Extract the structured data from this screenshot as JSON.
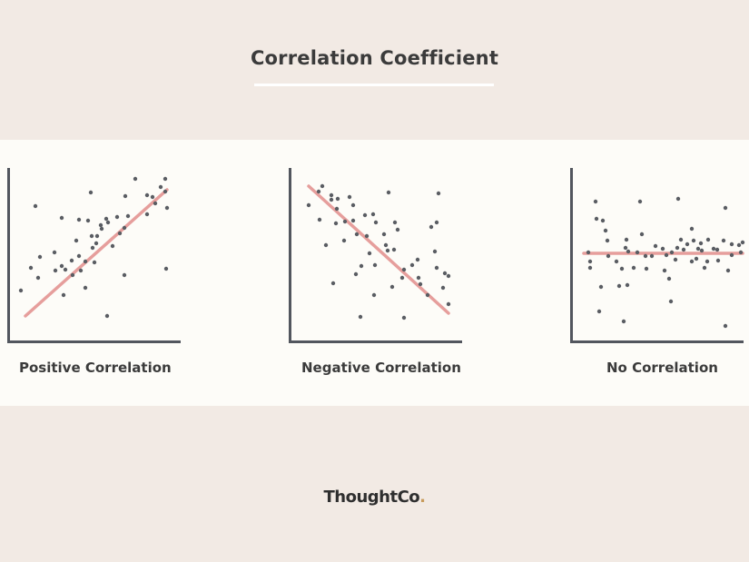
{
  "title": "Correlation Coefficient",
  "panels": [
    {
      "label": "Positive Correlation",
      "trend": "positive",
      "points": [
        [
          15,
          135
        ],
        [
          31,
          42
        ],
        [
          26,
          110
        ],
        [
          34,
          121
        ],
        [
          53,
          113
        ],
        [
          36,
          98
        ],
        [
          52,
          93
        ],
        [
          60,
          108
        ],
        [
          62,
          140
        ],
        [
          60,
          55
        ],
        [
          64,
          112
        ],
        [
          71,
          102
        ],
        [
          72,
          118
        ],
        [
          79,
          97
        ],
        [
          86,
          103
        ],
        [
          76,
          80
        ],
        [
          79,
          57
        ],
        [
          81,
          113
        ],
        [
          86,
          132
        ],
        [
          89,
          58
        ],
        [
          93,
          75
        ],
        [
          98,
          83
        ],
        [
          94,
          88
        ],
        [
          92,
          27
        ],
        [
          96,
          104
        ],
        [
          99,
          75
        ],
        [
          104,
          67
        ],
        [
          103,
          63
        ],
        [
          109,
          56
        ],
        [
          110,
          163
        ],
        [
          111,
          60
        ],
        [
          116,
          86
        ],
        [
          121,
          54
        ],
        [
          124,
          72
        ],
        [
          129,
          66
        ],
        [
          129,
          118
        ],
        [
          133,
          53
        ],
        [
          130,
          31
        ],
        [
          141,
          12
        ],
        [
          154,
          51
        ],
        [
          154,
          30
        ],
        [
          160,
          32
        ],
        [
          163,
          39
        ],
        [
          169,
          21
        ],
        [
          174,
          12
        ],
        [
          175,
          111
        ],
        [
          176,
          44
        ],
        [
          174,
          26
        ]
      ],
      "line": [
        [
          20,
          163
        ],
        [
          176,
          24
        ]
      ]
    },
    {
      "label": "Negative Correlation",
      "trend": "negative",
      "points": [
        [
          22,
          41
        ],
        [
          33,
          26
        ],
        [
          37,
          20
        ],
        [
          34,
          57
        ],
        [
          41,
          85
        ],
        [
          47,
          30
        ],
        [
          47,
          35
        ],
        [
          49,
          127
        ],
        [
          52,
          61
        ],
        [
          53,
          45
        ],
        [
          54,
          34
        ],
        [
          61,
          80
        ],
        [
          62,
          59
        ],
        [
          67,
          32
        ],
        [
          71,
          58
        ],
        [
          71,
          41
        ],
        [
          74,
          117
        ],
        [
          75,
          73
        ],
        [
          79,
          164
        ],
        [
          80,
          108
        ],
        [
          84,
          52
        ],
        [
          86,
          75
        ],
        [
          89,
          94
        ],
        [
          93,
          51
        ],
        [
          94,
          140
        ],
        [
          95,
          107
        ],
        [
          96,
          60
        ],
        [
          105,
          73
        ],
        [
          107,
          85
        ],
        [
          109,
          91
        ],
        [
          110,
          27
        ],
        [
          114,
          131
        ],
        [
          116,
          90
        ],
        [
          117,
          60
        ],
        [
          120,
          68
        ],
        [
          125,
          121
        ],
        [
          127,
          112
        ],
        [
          127,
          165
        ],
        [
          136,
          107
        ],
        [
          142,
          101
        ],
        [
          143,
          121
        ],
        [
          145,
          128
        ],
        [
          153,
          140
        ],
        [
          157,
          65
        ],
        [
          161,
          92
        ],
        [
          163,
          60
        ],
        [
          163,
          110
        ],
        [
          165,
          28
        ],
        [
          170,
          132
        ],
        [
          172,
          116
        ],
        [
          176,
          119
        ],
        [
          176,
          150
        ]
      ],
      "line": [
        [
          22,
          20
        ],
        [
          176,
          160
        ]
      ]
    },
    {
      "label": "No Correlation",
      "trend": "none",
      "points": [
        [
          20,
          93
        ],
        [
          22,
          103
        ],
        [
          22,
          110
        ],
        [
          28,
          37
        ],
        [
          29,
          56
        ],
        [
          32,
          158
        ],
        [
          34,
          131
        ],
        [
          36,
          58
        ],
        [
          39,
          69
        ],
        [
          41,
          80
        ],
        [
          42,
          97
        ],
        [
          51,
          103
        ],
        [
          54,
          130
        ],
        [
          57,
          111
        ],
        [
          59,
          169
        ],
        [
          61,
          88
        ],
        [
          62,
          79
        ],
        [
          63,
          129
        ],
        [
          64,
          92
        ],
        [
          70,
          110
        ],
        [
          74,
          93
        ],
        [
          77,
          37
        ],
        [
          79,
          73
        ],
        [
          83,
          97
        ],
        [
          84,
          111
        ],
        [
          90,
          97
        ],
        [
          94,
          86
        ],
        [
          102,
          89
        ],
        [
          104,
          113
        ],
        [
          106,
          96
        ],
        [
          109,
          122
        ],
        [
          111,
          147
        ],
        [
          112,
          93
        ],
        [
          116,
          101
        ],
        [
          118,
          88
        ],
        [
          119,
          34
        ],
        [
          122,
          79
        ],
        [
          125,
          90
        ],
        [
          129,
          84
        ],
        [
          134,
          103
        ],
        [
          134,
          67
        ],
        [
          136,
          80
        ],
        [
          139,
          100
        ],
        [
          141,
          89
        ],
        [
          144,
          83
        ],
        [
          145,
          91
        ],
        [
          148,
          110
        ],
        [
          151,
          103
        ],
        [
          152,
          79
        ],
        [
          158,
          89
        ],
        [
          162,
          90
        ],
        [
          163,
          102
        ],
        [
          169,
          80
        ],
        [
          171,
          44
        ],
        [
          171,
          174
        ],
        [
          174,
          113
        ],
        [
          178,
          84
        ],
        [
          178,
          96
        ],
        [
          186,
          85
        ],
        [
          188,
          93
        ],
        [
          190,
          82
        ]
      ],
      "line": [
        [
          15,
          94
        ],
        [
          190,
          94
        ]
      ]
    }
  ],
  "logo": {
    "brand": "Thought",
    "suffix": "Co",
    "dot": "."
  },
  "colors": {
    "axis": "#52565e",
    "dot": "#5a5d63",
    "trend": "#e59a98",
    "background": "#f2eae4",
    "band": "#fdfcf8"
  }
}
